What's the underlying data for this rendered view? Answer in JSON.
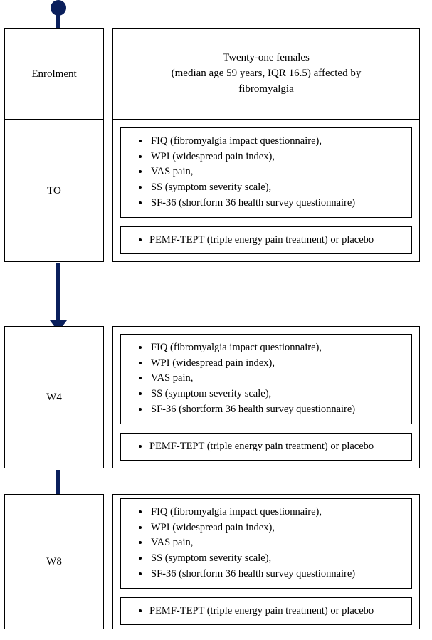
{
  "flowchart": {
    "type": "flowchart",
    "background_color": "#ffffff",
    "border_color": "#000000",
    "timeline_color": "#0a1f5c",
    "font_family": "Georgia, serif",
    "font_size_label": 15,
    "font_size_body": 14.5,
    "stages": {
      "enrolment": {
        "label": "Enrolment",
        "description_line1": "Twenty-one females",
        "description_line2": "(median age 59 years, IQR 16.5) affected by",
        "description_line3": "fibromyalgia"
      },
      "to": {
        "label": "TO",
        "measures": [
          "FIQ (fibromyalgia impact questionnaire),",
          "WPI (widespread pain index),",
          "VAS pain,",
          "SS (symptom severity scale),",
          "SF-36 (shortform 36 health survey questionnaire)"
        ],
        "treatment": "PEMF-TEPT (triple energy pain treatment) or placebo"
      },
      "w4": {
        "label": "W4",
        "measures": [
          "FIQ (fibromyalgia impact questionnaire),",
          "WPI (widespread pain index),",
          "VAS pain,",
          "SS (symptom severity scale),",
          "SF-36 (shortform 36 health survey questionnaire)"
        ],
        "treatment": "PEMF-TEPT (triple energy pain treatment) or placebo"
      },
      "w8": {
        "label": "W8",
        "measures": [
          "FIQ (fibromyalgia impact questionnaire),",
          "WPI (widespread pain index),",
          "VAS pain,",
          "SS (symptom severity scale),",
          "SF-36 (shortform 36 health survey questionnaire)"
        ],
        "treatment": "PEMF-TEPT (triple energy pain treatment) or placebo"
      }
    }
  }
}
